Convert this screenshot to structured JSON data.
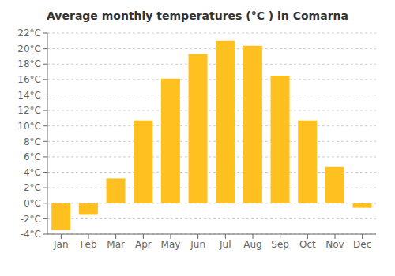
{
  "chart_data": {
    "type": "bar",
    "title": "Average monthly temperatures (°C ) in Comarna",
    "categories": [
      "Jan",
      "Feb",
      "Mar",
      "Apr",
      "May",
      "Jun",
      "Jul",
      "Aug",
      "Sep",
      "Oct",
      "Nov",
      "Dec"
    ],
    "values": [
      -3.5,
      -1.5,
      3.2,
      10.7,
      16.1,
      19.3,
      21.0,
      20.4,
      16.5,
      10.7,
      4.7,
      -0.6
    ],
    "color": "#FFC020",
    "ylim": [
      -4,
      22
    ],
    "yticks": [
      {
        "value": -4,
        "label": "-4°C"
      },
      {
        "value": -2,
        "label": "-2°C"
      },
      {
        "value": 0,
        "label": "0°C"
      },
      {
        "value": 2,
        "label": "2°C"
      },
      {
        "value": 4,
        "label": "4°C"
      },
      {
        "value": 6,
        "label": "6°C"
      },
      {
        "value": 8,
        "label": "8°C"
      },
      {
        "value": 10,
        "label": "10°C"
      },
      {
        "value": 12,
        "label": "12°C"
      },
      {
        "value": 14,
        "label": "14°C"
      },
      {
        "value": 16,
        "label": "16°C"
      },
      {
        "value": 18,
        "label": "18°C"
      },
      {
        "value": 20,
        "label": "20°C"
      },
      {
        "value": 22,
        "label": "22°C"
      }
    ],
    "grid": true
  }
}
